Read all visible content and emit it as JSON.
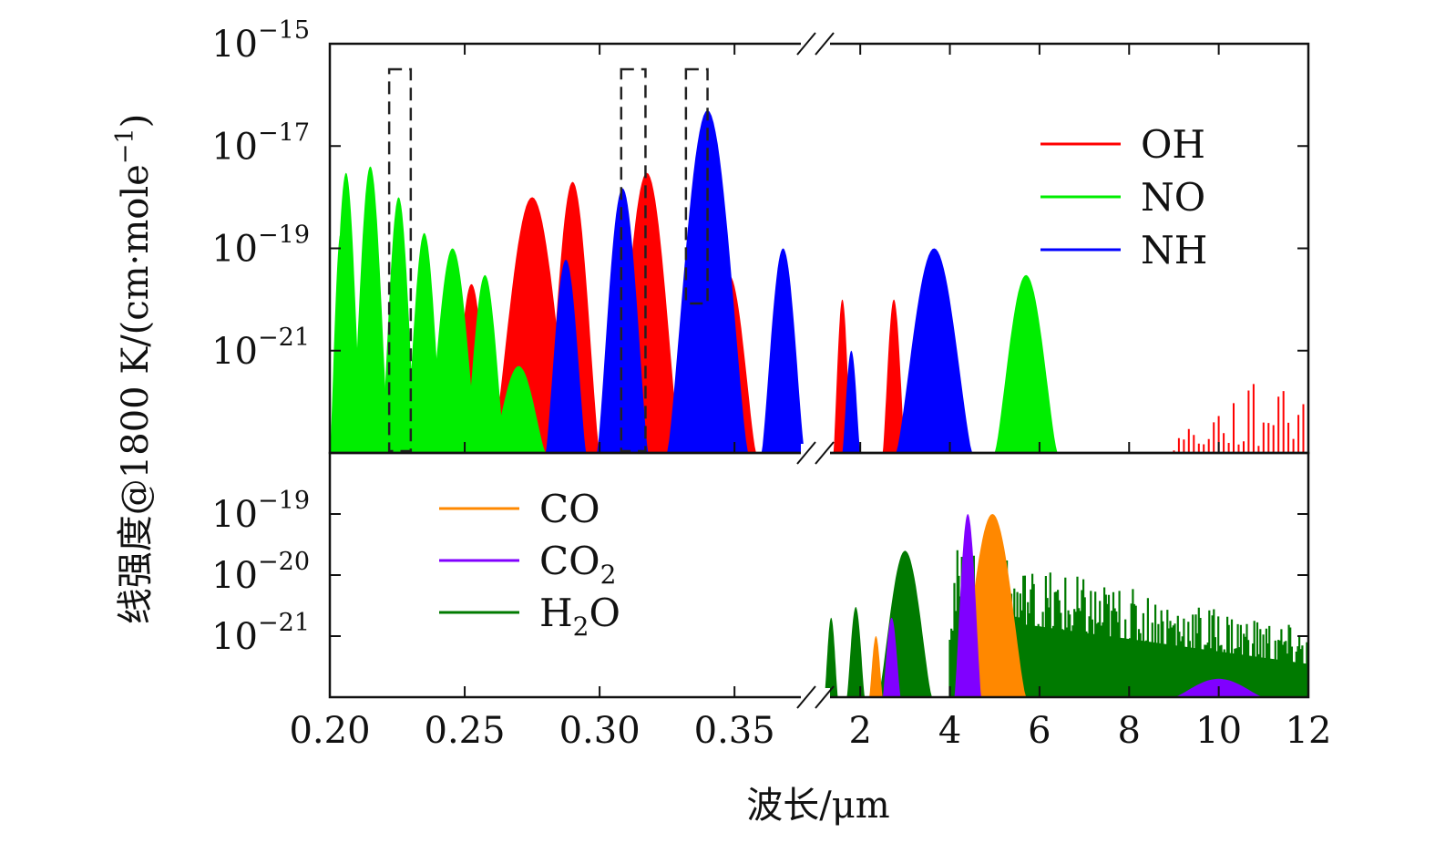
{
  "chart_data": {
    "type": "area",
    "xlabel": "波长/μm",
    "ylabel": "线强度@1800 K/(cm·mole",
    "ylabel_sup": "−1",
    "ylabel_close": ")",
    "x_axis": {
      "broken": true,
      "left_segment": {
        "range": [
          0.2,
          0.38
        ],
        "ticks": [
          "0.20",
          "0.25",
          "0.30",
          "0.35"
        ],
        "tick_values": [
          0.2,
          0.25,
          0.3,
          0.35
        ]
      },
      "right_segment": {
        "range": [
          1,
          12
        ],
        "ticks": [
          "2",
          "4",
          "6",
          "8",
          "10",
          "12"
        ],
        "tick_values": [
          2,
          4,
          6,
          8,
          10,
          12
        ]
      }
    },
    "highlight_boxes_um": [
      [
        0.222,
        0.23
      ],
      [
        0.308,
        0.317
      ],
      [
        0.332,
        0.34
      ]
    ],
    "panels": [
      {
        "id": "top",
        "yscale": "log",
        "ylim": [
          1e-23,
          1e-15
        ],
        "yticks": [
          {
            "value": 1e-15,
            "base": "10",
            "exp": "−15"
          },
          {
            "value": 1e-17,
            "base": "10",
            "exp": "−17"
          },
          {
            "value": 1e-19,
            "base": "10",
            "exp": "−19"
          },
          {
            "value": 1e-21,
            "base": "10",
            "exp": "−21"
          }
        ],
        "legend": {
          "position": "top-right",
          "entries": [
            "OH",
            "NO",
            "NH"
          ]
        },
        "series": [
          {
            "name": "OH",
            "color": "#ff0000",
            "bands": [
              {
                "x": [
                  0.245,
                  0.26
                ],
                "peak": 2e-20
              },
              {
                "x": [
                  0.26,
                  0.29
                ],
                "peak": 1e-18
              },
              {
                "x": [
                  0.28,
                  0.3
                ],
                "peak": 2e-18
              },
              {
                "x": [
                  0.305,
                  0.33
                ],
                "peak": 3e-18
              },
              {
                "x": [
                  0.338,
                  0.358
                ],
                "peak": 3e-20
              },
              {
                "x": [
                  1.4,
                  1.8
                ],
                "peak": 1e-20
              },
              {
                "x": [
                  2.5,
                  3.0
                ],
                "peak": 1e-20
              },
              {
                "x": [
                  9.0,
                  12.0
                ],
                "peak": 1e-21,
                "sparse": true
              }
            ]
          },
          {
            "name": "NO",
            "color": "#00ee00",
            "bands": [
              {
                "x": [
                  0.2,
                  0.208
                ],
                "peak": 2e-19
              },
              {
                "x": [
                  0.2,
                  0.212
                ],
                "peak": 3e-18
              },
              {
                "x": [
                  0.208,
                  0.222
                ],
                "peak": 4e-18
              },
              {
                "x": [
                  0.219,
                  0.232
                ],
                "peak": 1e-18
              },
              {
                "x": [
                  0.228,
                  0.242
                ],
                "peak": 2e-19
              },
              {
                "x": [
                  0.236,
                  0.255
                ],
                "peak": 1e-19
              },
              {
                "x": [
                  0.25,
                  0.265
                ],
                "peak": 3e-20
              },
              {
                "x": [
                  0.26,
                  0.28
                ],
                "peak": 5e-22
              },
              {
                "x": [
                  5.0,
                  6.4
                ],
                "peak": 3e-20
              }
            ]
          },
          {
            "name": "NH",
            "color": "#0000ff",
            "bands": [
              {
                "x": [
                  0.28,
                  0.295
                ],
                "peak": 6e-20
              },
              {
                "x": [
                  0.299,
                  0.318
                ],
                "peak": 1.5e-18
              },
              {
                "x": [
                  0.325,
                  0.355
                ],
                "peak": 5e-17
              },
              {
                "x": [
                  0.36,
                  0.376
                ],
                "peak": 1e-19
              },
              {
                "x": [
                  1.6,
                  2.0
                ],
                "peak": 1e-21
              },
              {
                "x": [
                  2.8,
                  4.5
                ],
                "peak": 1e-19
              }
            ]
          }
        ]
      },
      {
        "id": "bottom",
        "yscale": "log",
        "ylim": [
          1e-22,
          1e-18
        ],
        "yticks": [
          {
            "value": 1e-19,
            "base": "10",
            "exp": "−19"
          },
          {
            "value": 1e-20,
            "base": "10",
            "exp": "−20"
          },
          {
            "value": 1e-21,
            "base": "10",
            "exp": "−21"
          }
        ],
        "legend": {
          "position": "top-left",
          "entries": [
            "CO",
            "CO2",
            "H2O"
          ]
        },
        "series": [
          {
            "name": "H2O",
            "color": "#007a00",
            "bands": [
              {
                "x": [
                  1.2,
                  1.5
                ],
                "peak": 2e-21
              },
              {
                "x": [
                  1.7,
                  2.1
                ],
                "peak": 3e-21
              },
              {
                "x": [
                  2.4,
                  3.6
                ],
                "peak": 2.5e-20
              },
              {
                "x": [
                  4.0,
                  12.0
                ],
                "peak": 3e-20,
                "noisy": true
              }
            ]
          },
          {
            "name": "CO",
            "color": "#ff8800",
            "bands": [
              {
                "x": [
                  2.2,
                  2.5
                ],
                "peak": 1e-21
              },
              {
                "x": [
                  4.2,
                  5.7
                ],
                "peak": 1e-19
              }
            ]
          },
          {
            "name": "CO2",
            "color": "#8000ff",
            "bands": [
              {
                "x": [
                  2.5,
                  2.9
                ],
                "peak": 2e-21
              },
              {
                "x": [
                  4.1,
                  4.7
                ],
                "peak": 1e-19
              },
              {
                "x": [
                  9.0,
                  11.0
                ],
                "peak": 2e-22
              }
            ]
          }
        ]
      }
    ]
  }
}
